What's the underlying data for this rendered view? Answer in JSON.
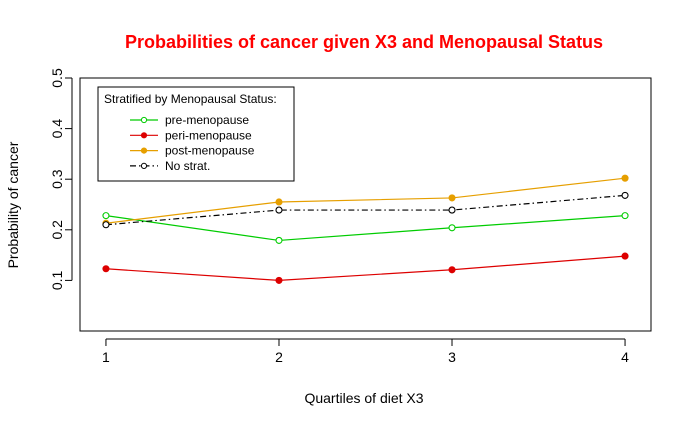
{
  "chart_data": {
    "type": "line",
    "title": "Probabilities of cancer given X3 and Menopausal Status",
    "xlabel": "Quartiles of diet X3",
    "ylabel": "Probability of cancer",
    "x": [
      1,
      2,
      3,
      4
    ],
    "x_tick_labels": [
      "1",
      "2",
      "3",
      "4"
    ],
    "xlim": [
      0.85,
      4.15
    ],
    "ylim": [
      0.0,
      0.5
    ],
    "y_ticks": [
      0.1,
      0.2,
      0.3,
      0.4,
      0.5
    ],
    "y_tick_labels": [
      "0.1",
      "0.2",
      "0.3",
      "0.4",
      "0.5"
    ],
    "grid": false,
    "legend": {
      "title": "Stratified by Menopausal Status:",
      "placement": "top-left"
    },
    "series": [
      {
        "name": "pre-menopause",
        "values": [
          0.228,
          0.179,
          0.204,
          0.228
        ],
        "color": "#00CC00",
        "line": "solid",
        "marker": "open"
      },
      {
        "name": "peri-menopause",
        "values": [
          0.123,
          0.1,
          0.121,
          0.148
        ],
        "color": "#DD0000",
        "line": "solid",
        "marker": "filled"
      },
      {
        "name": "post-menopause",
        "values": [
          0.213,
          0.255,
          0.263,
          0.302
        ],
        "color": "#E69F00",
        "line": "solid",
        "marker": "filled"
      },
      {
        "name": "No strat.",
        "values": [
          0.21,
          0.239,
          0.239,
          0.268
        ],
        "color": "#000000",
        "line": "dashdot",
        "marker": "open"
      }
    ],
    "title_color": "#FF0000"
  }
}
